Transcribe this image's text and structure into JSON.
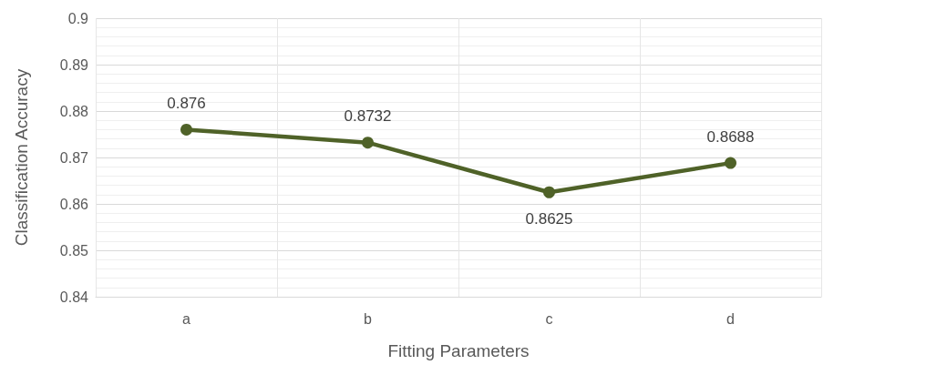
{
  "chart_data": {
    "type": "line",
    "xlabel": "Fitting Parameters",
    "ylabel": "Classification Accuracy",
    "categories": [
      "a",
      "b",
      "c",
      "d"
    ],
    "series": [
      {
        "color": "#4f6228",
        "values": [
          0.876,
          0.8732,
          0.8625,
          0.8688
        ]
      }
    ],
    "ylim": [
      0.84,
      0.9
    ],
    "yticks": [
      0.84,
      0.85,
      0.86,
      0.87,
      0.88,
      0.89,
      0.9
    ],
    "grid": true,
    "marker": "circle",
    "line_style": "solid",
    "data_labels": true
  }
}
